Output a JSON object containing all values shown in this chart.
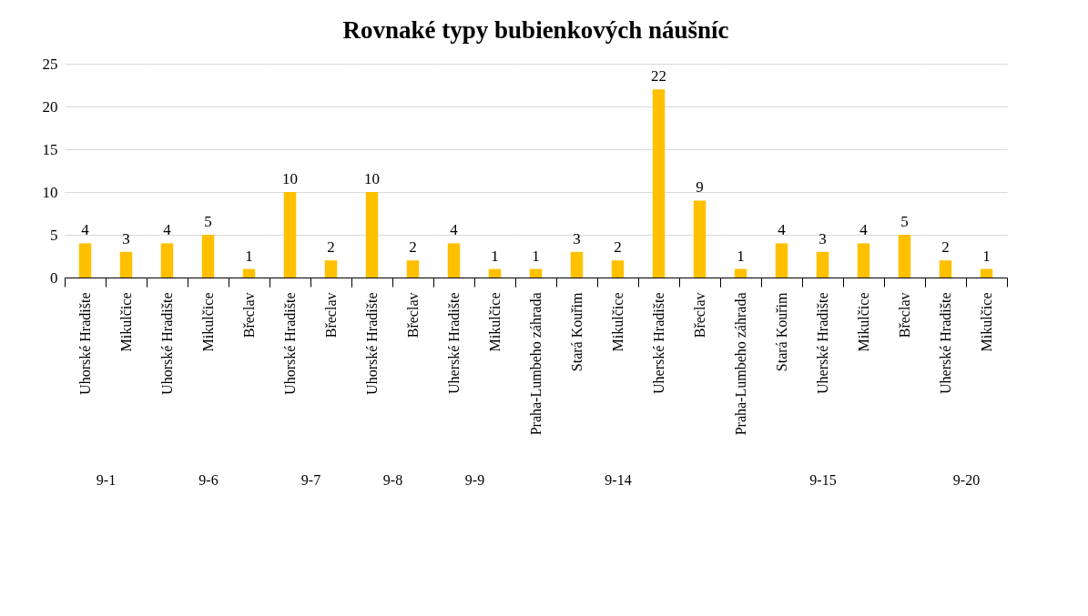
{
  "chart_data": [
    {
      "type": "bar",
      "xlabel": "9-1",
      "categories": [
        "Uhorské Hradište",
        "Mikulčice"
      ],
      "values": [
        4,
        3
      ],
      "color": "#ffc000",
      "ylim": [
        0,
        25
      ],
      "yticks": [
        0,
        5,
        10,
        15,
        20,
        25
      ],
      "grid": "y",
      "data_labels": true
    },
    {
      "type": "bar",
      "xlabel": "9-6",
      "categories": [
        "Uhorské Hradište",
        "Mikulčice",
        "Břeclav"
      ],
      "values": [
        4,
        5,
        1
      ],
      "color": "#ffc000",
      "ylim": [
        0,
        25
      ],
      "yticks": [
        0,
        5,
        10,
        15,
        20,
        25
      ],
      "grid": "y",
      "data_labels": true,
      "tick_labels": "x"
    },
    {
      "type": "bar",
      "xlabel": "9-7",
      "categories": [
        "Uhorské Hradište",
        "Břeclav"
      ],
      "values": [
        10,
        2
      ],
      "color": "#ffc000",
      "ylim": [
        0,
        25
      ],
      "yticks": [
        0,
        5,
        10,
        15,
        20,
        25
      ],
      "grid": "y",
      "data_labels": true,
      "tick_labels": "x"
    },
    {
      "type": "bar",
      "xlabel": "9-8",
      "categories": [
        "Uhorské Hradište",
        "Břeclav"
      ],
      "values": [
        10,
        2
      ],
      "color": "#ffc000",
      "ylim": [
        0,
        25
      ],
      "yticks": [
        0,
        5,
        10,
        15,
        20,
        25
      ],
      "grid": "y",
      "data_labels": true,
      "tick_labels": "x"
    },
    {
      "type": "bar",
      "xlabel": "9-9",
      "categories": [
        "Uherské Hradište",
        "Mikulčice"
      ],
      "values": [
        4,
        1
      ],
      "color": "#ffc000",
      "ylim": [
        0,
        25
      ],
      "yticks": [
        0,
        5,
        10,
        15,
        20,
        25
      ],
      "grid": "y",
      "data_labels": true,
      "tick_labels": "x"
    },
    {
      "type": "bar",
      "title": "Rovnaké typy bubienkových náušníc",
      "xlabel": "9-14",
      "categories": [
        "Praha-Lumbeho záhrada",
        "Stará Kouřim",
        "Mikulčice",
        "Uherské Hradište",
        "Břeclav"
      ],
      "values": [
        1,
        3,
        2,
        22,
        9
      ],
      "color": "#ffc000",
      "ylim": [
        0,
        25
      ],
      "yticks": [
        0,
        5,
        10,
        15,
        20,
        25
      ],
      "grid": "y",
      "data_labels": true,
      "tick_labels": "x"
    },
    {
      "type": "bar",
      "xlabel": "9-15",
      "categories": [
        "Praha-Lumbeho záhrada",
        "Stará Kouřim",
        "Uherské Hradište",
        "Mikulčice",
        "Břeclav"
      ],
      "values": [
        1,
        4,
        3,
        4,
        5
      ],
      "color": "#ffc000",
      "ylim": [
        0,
        25
      ],
      "yticks": [
        0,
        5,
        10,
        15,
        20,
        25
      ],
      "grid": "y",
      "data_labels": true,
      "tick_labels": "x"
    },
    {
      "type": "bar",
      "xlabel": "9-20",
      "categories": [
        "Uherské Hradište",
        "Mikulčice"
      ],
      "values": [
        2,
        1
      ],
      "color": "#ffc000",
      "ylim": [
        0,
        25
      ],
      "yticks": [
        0,
        5,
        10,
        15,
        20,
        25
      ],
      "grid": "y",
      "data_labels": true,
      "tick_labels": "x"
    }
  ]
}
